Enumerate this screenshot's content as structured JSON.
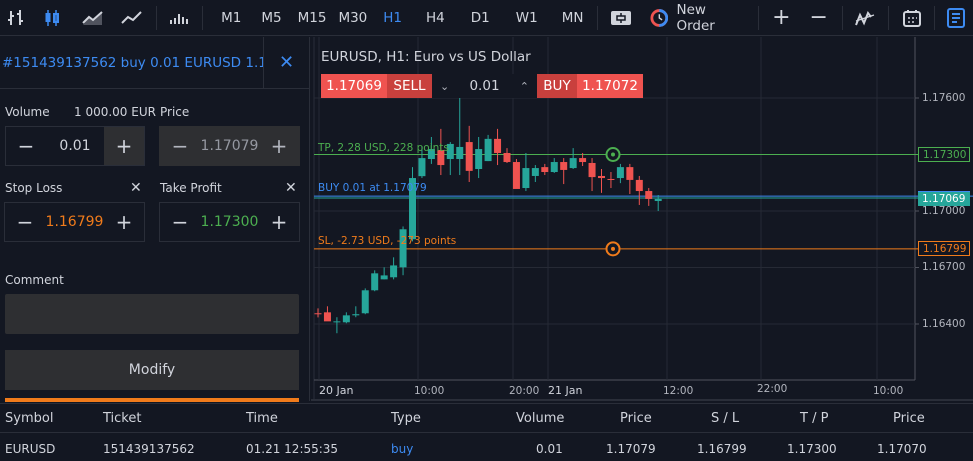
{
  "toolbar": {
    "chart_types": [
      {
        "name": "bar-chart-icon",
        "active": false
      },
      {
        "name": "candlestick-chart-icon",
        "active": true
      },
      {
        "name": "area-chart-icon",
        "active": false
      },
      {
        "name": "line-chart-icon",
        "active": false
      }
    ],
    "volume_icon": "volume-bars-icon",
    "timeframes": [
      {
        "label": "M1",
        "active": false
      },
      {
        "label": "M5",
        "active": false
      },
      {
        "label": "M15",
        "active": false
      },
      {
        "label": "M30",
        "active": false
      },
      {
        "label": "H1",
        "active": true
      },
      {
        "label": "H4",
        "active": false
      },
      {
        "label": "D1",
        "active": false
      },
      {
        "label": "W1",
        "active": false
      },
      {
        "label": "MN",
        "active": false
      }
    ],
    "new_order_label": "New Order",
    "zoom_in": "+",
    "zoom_out": "−"
  },
  "order_panel": {
    "title": "#151439137562 buy 0.01 EURUSD 1.17...",
    "close": "✕",
    "volume": {
      "label": "Volume",
      "info": "1 000.00 EUR",
      "value": "0.01"
    },
    "price": {
      "label": "Price",
      "value": "1.17079"
    },
    "stop_loss": {
      "label": "Stop Loss",
      "value": "1.16799"
    },
    "take_profit": {
      "label": "Take Profit",
      "value": "1.17300"
    },
    "comment": {
      "label": "Comment",
      "value": ""
    },
    "modify_label": "Modify",
    "minus": "−",
    "plus": "+",
    "clear": "✕"
  },
  "chart": {
    "title": "EURUSD, H1: Euro vs US Dollar",
    "sell_price": "1.17069",
    "sell_label": "SELL",
    "volume": "0.01",
    "buy_label": "BUY",
    "buy_price": "1.17072",
    "tp_line_label": "TP, 2.28 USD, 228 points",
    "position_line_label": "BUY 0.01 at 1.17079",
    "sl_line_label": "SL, -2.73 USD, -273 points",
    "tp_tag": "1.17300",
    "bid_tag": "1.17069",
    "sl_tag": "1.16799",
    "colors": {
      "bull": "#26a69a",
      "bear": "#ef5350",
      "tp": "#4caf50",
      "sl": "#f07b1b",
      "position": "#3d8bf2",
      "bid": "#26a69a"
    }
  },
  "chart_data": {
    "type": "candlestick",
    "symbol": "EURUSD",
    "timeframe": "H1",
    "title": "EURUSD, H1: Euro vs US Dollar",
    "y_ticks": [
      "1.17600",
      "1.17300",
      "1.17000",
      "1.16700",
      "1.16400"
    ],
    "x_ticks": [
      "20 Jan",
      "10:00",
      "20:00",
      "21 Jan",
      "12:00",
      "22:00",
      "10:00"
    ],
    "ylim": [
      1.1625,
      1.1778
    ],
    "horizontal_lines": [
      {
        "name": "TP",
        "price": 1.173
      },
      {
        "name": "Entry",
        "price": 1.17079
      },
      {
        "name": "Bid",
        "price": 1.17069
      },
      {
        "name": "SL",
        "price": 1.16799
      }
    ],
    "candles": [
      {
        "o": 1.16457,
        "h": 1.16483,
        "l": 1.16435,
        "c": 1.16452
      },
      {
        "o": 1.16462,
        "h": 1.16494,
        "l": 1.1642,
        "c": 1.16414
      },
      {
        "o": 1.16409,
        "h": 1.16436,
        "l": 1.16351,
        "c": 1.16414
      },
      {
        "o": 1.16409,
        "h": 1.16462,
        "l": 1.16404,
        "c": 1.16446
      },
      {
        "o": 1.16446,
        "h": 1.16494,
        "l": 1.16436,
        "c": 1.16452
      },
      {
        "o": 1.16457,
        "h": 1.16589,
        "l": 1.16452,
        "c": 1.16579
      },
      {
        "o": 1.16579,
        "h": 1.16685,
        "l": 1.16574,
        "c": 1.16669
      },
      {
        "o": 1.16637,
        "h": 1.16701,
        "l": 1.16637,
        "c": 1.16658
      },
      {
        "o": 1.16648,
        "h": 1.16754,
        "l": 1.16637,
        "c": 1.16711
      },
      {
        "o": 1.16701,
        "h": 1.16918,
        "l": 1.16659,
        "c": 1.16903
      },
      {
        "o": 1.1685,
        "h": 1.17233,
        "l": 1.16839,
        "c": 1.17175
      },
      {
        "o": 1.17185,
        "h": 1.17345,
        "l": 1.17175,
        "c": 1.17281
      },
      {
        "o": 1.17276,
        "h": 1.17393,
        "l": 1.1725,
        "c": 1.17329
      },
      {
        "o": 1.17324,
        "h": 1.17436,
        "l": 1.17191,
        "c": 1.17244
      },
      {
        "o": 1.17276,
        "h": 1.17366,
        "l": 1.17191,
        "c": 1.17356
      },
      {
        "o": 1.17276,
        "h": 1.176,
        "l": 1.17191,
        "c": 1.1734
      },
      {
        "o": 1.17366,
        "h": 1.17452,
        "l": 1.17154,
        "c": 1.17213
      },
      {
        "o": 1.17223,
        "h": 1.17393,
        "l": 1.17175,
        "c": 1.17329
      },
      {
        "o": 1.17265,
        "h": 1.17404,
        "l": 1.17265,
        "c": 1.17383
      },
      {
        "o": 1.17383,
        "h": 1.17436,
        "l": 1.17244,
        "c": 1.17308
      },
      {
        "o": 1.17308,
        "h": 1.17334,
        "l": 1.17255,
        "c": 1.1726
      },
      {
        "o": 1.1726,
        "h": 1.17276,
        "l": 1.17127,
        "c": 1.17117
      },
      {
        "o": 1.17122,
        "h": 1.17308,
        "l": 1.17106,
        "c": 1.17228
      },
      {
        "o": 1.17186,
        "h": 1.17244,
        "l": 1.17154,
        "c": 1.17228
      },
      {
        "o": 1.17233,
        "h": 1.1725,
        "l": 1.17191,
        "c": 1.17207
      },
      {
        "o": 1.17207,
        "h": 1.17281,
        "l": 1.17202,
        "c": 1.1726
      },
      {
        "o": 1.1726,
        "h": 1.17281,
        "l": 1.17143,
        "c": 1.17218
      },
      {
        "o": 1.17228,
        "h": 1.17334,
        "l": 1.17223,
        "c": 1.17281
      },
      {
        "o": 1.17281,
        "h": 1.17308,
        "l": 1.17239,
        "c": 1.1726
      },
      {
        "o": 1.17255,
        "h": 1.17281,
        "l": 1.17106,
        "c": 1.1718
      },
      {
        "o": 1.17186,
        "h": 1.17223,
        "l": 1.17096,
        "c": 1.17175
      },
      {
        "o": 1.1717,
        "h": 1.17207,
        "l": 1.17122,
        "c": 1.17165
      },
      {
        "o": 1.17175,
        "h": 1.1725,
        "l": 1.17148,
        "c": 1.17233
      },
      {
        "o": 1.17233,
        "h": 1.1725,
        "l": 1.1709,
        "c": 1.17165
      },
      {
        "o": 1.17165,
        "h": 1.17186,
        "l": 1.17032,
        "c": 1.17106
      },
      {
        "o": 1.17106,
        "h": 1.17122,
        "l": 1.17027,
        "c": 1.17064
      },
      {
        "o": 1.17053,
        "h": 1.17085,
        "l": 1.17,
        "c": 1.17064
      }
    ]
  },
  "positions_table": {
    "columns": [
      "Symbol",
      "Ticket",
      "Time",
      "Type",
      "Volume",
      "Price",
      "S / L",
      "T / P",
      "Price"
    ],
    "rows": [
      {
        "symbol": "EURUSD",
        "ticket": "151439137562",
        "time": "01.21 12:55:35",
        "type": "buy",
        "volume": "0.01",
        "price": "1.17079",
        "sl": "1.16799",
        "tp": "1.17300",
        "current_price": "1.17070"
      }
    ]
  }
}
